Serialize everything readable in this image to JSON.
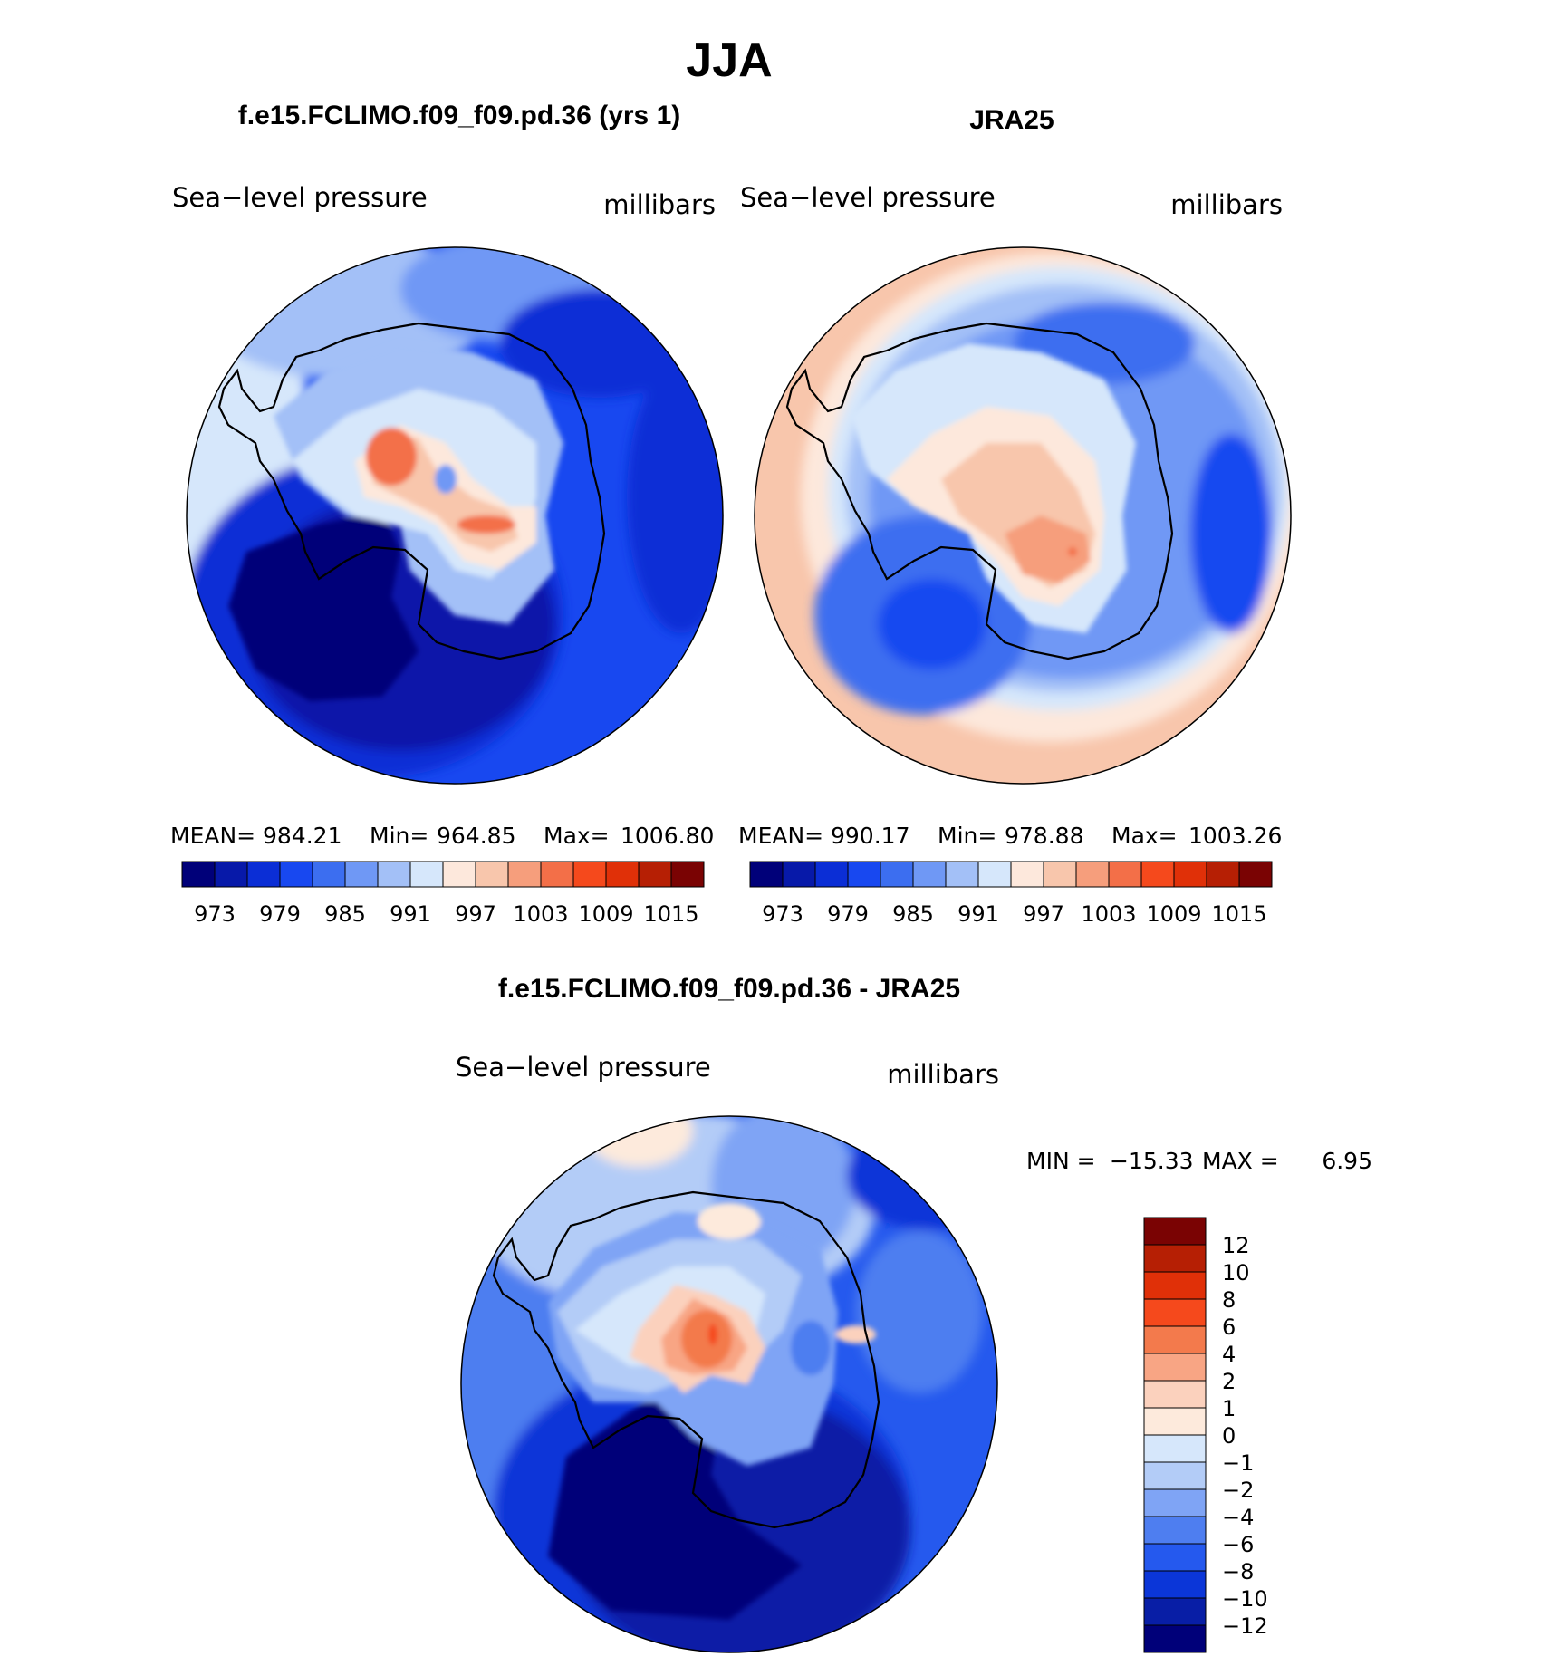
{
  "figure": {
    "title": "JJA",
    "bottom_title": "f.e15.FCLIMO.f09_f09.pd.36 - JRA25"
  },
  "chart_data": [
    {
      "type": "heatmap",
      "projection": "south-polar-stereographic",
      "title": "f.e15.FCLIMO.f09_f09.pd.36 (yrs 1)",
      "variable": "Sea−level pressure",
      "units": "millibars",
      "stats": {
        "mean_label": "MEAN=",
        "mean": "984.21",
        "min_label": "Min=",
        "min": "964.85",
        "max_label": "Max=",
        "max": "1006.80"
      },
      "colorbar_ticks": [
        "973",
        "979",
        "985",
        "991",
        "997",
        "1003",
        "1009",
        "1015"
      ],
      "levels": [
        970,
        973,
        976,
        979,
        982,
        985,
        988,
        991,
        994,
        997,
        1000,
        1003,
        1006,
        1009,
        1012,
        1015
      ],
      "field_samples": {
        "amundsen_sea_low": 966,
        "east_antarctic_high": 1006,
        "southern_ocean_ring": 985,
        "outer_midlatitudes": 995
      }
    },
    {
      "type": "heatmap",
      "projection": "south-polar-stereographic",
      "title": "JRA25",
      "variable": "Sea−level pressure",
      "units": "millibars",
      "stats": {
        "mean_label": "MEAN=",
        "mean": "990.17",
        "min_label": "Min=",
        "min": "978.88",
        "max_label": "Max=",
        "max": "1003.26"
      },
      "colorbar_ticks": [
        "973",
        "979",
        "985",
        "991",
        "997",
        "1003",
        "1009",
        "1015"
      ],
      "levels": [
        970,
        973,
        976,
        979,
        982,
        985,
        988,
        991,
        994,
        997,
        1000,
        1003,
        1006,
        1009,
        1012,
        1015
      ],
      "field_samples": {
        "amundsen_sea_low": 980,
        "east_antarctic_high": 1003,
        "southern_ocean_ring": 986,
        "outer_midlatitudes": 1001
      }
    },
    {
      "type": "heatmap",
      "projection": "south-polar-stereographic",
      "title": "f.e15.FCLIMO.f09_f09.pd.36 - JRA25",
      "variable": "Sea−level pressure",
      "units": "millibars",
      "stats": {
        "min_label": "MIN =",
        "min": "−15.33",
        "max_label": "MAX =",
        "max": "6.95"
      },
      "colorbar_ticks": [
        "12",
        "10",
        "8",
        "6",
        "4",
        "2",
        "1",
        "0",
        "−1",
        "−2",
        "−4",
        "−6",
        "−8",
        "−10",
        "−12"
      ],
      "levels": [
        -12,
        -10,
        -8,
        -6,
        -4,
        -2,
        -1,
        0,
        1,
        2,
        4,
        6,
        8,
        10,
        12
      ],
      "field_samples": {
        "amundsen_sea_low": -15,
        "plateau_high": 5,
        "southern_ocean_ring": -7,
        "outer_midlatitudes": -4
      }
    }
  ],
  "colors": {
    "slp_palette": [
      "#000079",
      "#0719a9",
      "#0b2ed6",
      "#1848f0",
      "#3c6ef0",
      "#6f98f5",
      "#a3c0f7",
      "#d6e7fb",
      "#fde8dc",
      "#f8c6ac",
      "#f69e7c",
      "#f36f48",
      "#f5491c",
      "#e03008",
      "#b61f04",
      "#7a0303"
    ],
    "diff_palette": [
      "#7a0303",
      "#b61f04",
      "#e03008",
      "#f5491c",
      "#f37a4c",
      "#f8a584",
      "#fbd1bd",
      "#fdeadc",
      "#d6e7fb",
      "#b3ccf7",
      "#7fa4f5",
      "#4e7ef0",
      "#2559ee",
      "#0b36d8",
      "#081ea6",
      "#000079"
    ],
    "coastline": "#000000"
  }
}
